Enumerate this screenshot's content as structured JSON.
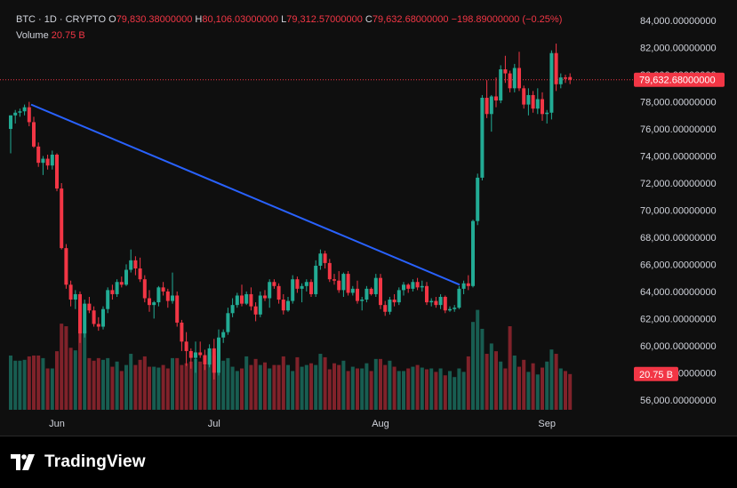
{
  "header": {
    "symbol": "BTC · 1D · CRYPTO",
    "open_label": "O",
    "open": "79,830.38000000",
    "high_label": "H",
    "high": "80,106.03000000",
    "low_label": "L",
    "low": "79,312.57000000",
    "close_label": "C",
    "close": "79,632.68000000",
    "change": "−198.89000000 (−0.25%)",
    "volume_label": "Volume",
    "volume": "20.75 B"
  },
  "price_badge": "79,632.68000000",
  "volume_badge": "20.75 B",
  "branding": {
    "name": "TradingView"
  },
  "colors": {
    "up": "#22ab94",
    "down": "#f23645",
    "trendline": "#2962ff",
    "background": "#0f0f0f"
  },
  "chart_data": {
    "type": "candlestick",
    "y_ticks": [
      "84,000.00000000",
      "82,000.00000000",
      "80,000.00000000",
      "78,000.00000000",
      "76,000.00000000",
      "74,000.00000000",
      "72,000.00000000",
      "70,000.00000000",
      "68,000.00000000",
      "66,000.00000000",
      "64,000.00000000",
      "62,000.00000000",
      "60,000.00000000",
      "58,000.00000000",
      "56,000.00000000"
    ],
    "x_ticks": [
      "Jun",
      "Jul",
      "Aug",
      "Sep"
    ],
    "ylim": [
      55200,
      84600
    ],
    "trendline": {
      "from": 77800,
      "to": 64500
    },
    "candles": [
      [
        76000,
        77000,
        74200,
        77000
      ],
      [
        77000,
        77400,
        76400,
        77200
      ],
      [
        77200,
        77500,
        76900,
        77300
      ],
      [
        77300,
        77800,
        77000,
        77600
      ],
      [
        77600,
        78000,
        76200,
        76500
      ],
      [
        76500,
        76900,
        74600,
        74700
      ],
      [
        74700,
        75000,
        73200,
        73500
      ],
      [
        73500,
        74000,
        72600,
        73800
      ],
      [
        73800,
        74100,
        73000,
        73300
      ],
      [
        73300,
        74400,
        73000,
        74100
      ],
      [
        74100,
        74200,
        71400,
        71600
      ],
      [
        71600,
        72000,
        67100,
        67200
      ],
      [
        67200,
        67500,
        64200,
        64500
      ],
      [
        64500,
        64800,
        62900,
        63400
      ],
      [
        63400,
        64100,
        62700,
        63800
      ],
      [
        63800,
        64000,
        60200,
        60900
      ],
      [
        60900,
        63400,
        60600,
        63100
      ],
      [
        63100,
        63600,
        62400,
        62600
      ],
      [
        62600,
        62900,
        61400,
        61600
      ],
      [
        61600,
        62100,
        61100,
        61400
      ],
      [
        61400,
        62900,
        61200,
        62700
      ],
      [
        62700,
        64300,
        62400,
        64100
      ],
      [
        64100,
        64500,
        63400,
        63800
      ],
      [
        63800,
        64900,
        63600,
        64700
      ],
      [
        64700,
        65100,
        64300,
        64500
      ],
      [
        64500,
        66000,
        64400,
        65600
      ],
      [
        65600,
        67100,
        65400,
        66300
      ],
      [
        66300,
        66600,
        65200,
        65700
      ],
      [
        65700,
        66500,
        64700,
        64900
      ],
      [
        64900,
        65200,
        63200,
        63500
      ],
      [
        63500,
        64100,
        62500,
        63000
      ],
      [
        63000,
        63300,
        62000,
        63200
      ],
      [
        63200,
        64400,
        62900,
        64300
      ],
      [
        64300,
        64700,
        63700,
        64000
      ],
      [
        64000,
        64200,
        62800,
        63300
      ],
      [
        63300,
        65400,
        63100,
        63700
      ],
      [
        63700,
        64000,
        61400,
        61700
      ],
      [
        61700,
        61900,
        59600,
        60300
      ],
      [
        60300,
        61000,
        58500,
        59600
      ],
      [
        59600,
        59800,
        58300,
        59100
      ],
      [
        59100,
        60300,
        58000,
        59500
      ],
      [
        59500,
        60300,
        59100,
        59300
      ],
      [
        59300,
        59700,
        58200,
        58600
      ],
      [
        58600,
        60100,
        58400,
        59800
      ],
      [
        59800,
        60500,
        57500,
        58000
      ],
      [
        58000,
        61200,
        57800,
        60600
      ],
      [
        60600,
        61200,
        60200,
        61000
      ],
      [
        61000,
        62800,
        60800,
        62400
      ],
      [
        62400,
        63500,
        62100,
        63000
      ],
      [
        63000,
        63900,
        62800,
        63700
      ],
      [
        63700,
        64500,
        62900,
        63100
      ],
      [
        63100,
        64000,
        63000,
        63800
      ],
      [
        63800,
        64300,
        62600,
        62900
      ],
      [
        62900,
        63200,
        61800,
        62300
      ],
      [
        62300,
        64000,
        62100,
        63700
      ],
      [
        63700,
        64100,
        63300,
        63500
      ],
      [
        63500,
        64900,
        62800,
        64700
      ],
      [
        64700,
        64900,
        64200,
        64400
      ],
      [
        64400,
        64600,
        63100,
        63400
      ],
      [
        63400,
        63800,
        62300,
        62600
      ],
      [
        62600,
        63600,
        62500,
        63300
      ],
      [
        63300,
        65200,
        63100,
        64900
      ],
      [
        64900,
        65100,
        63900,
        64200
      ],
      [
        64200,
        64600,
        63200,
        64400
      ],
      [
        64400,
        64900,
        64000,
        64700
      ],
      [
        64700,
        64900,
        63600,
        63800
      ],
      [
        63800,
        66300,
        63600,
        65900
      ],
      [
        65900,
        67100,
        65600,
        66800
      ],
      [
        66800,
        67000,
        65700,
        66100
      ],
      [
        66100,
        66400,
        64700,
        64900
      ],
      [
        64900,
        65300,
        64500,
        64800
      ],
      [
        64800,
        65500,
        63900,
        64100
      ],
      [
        64100,
        65400,
        63600,
        65300
      ],
      [
        65300,
        65500,
        63700,
        63900
      ],
      [
        63900,
        64400,
        63700,
        64200
      ],
      [
        64200,
        64800,
        63100,
        63300
      ],
      [
        63300,
        63600,
        62600,
        63400
      ],
      [
        63400,
        64400,
        63200,
        64200
      ],
      [
        64200,
        64300,
        63700,
        63800
      ],
      [
        63800,
        65300,
        63600,
        65000
      ],
      [
        65000,
        65300,
        62700,
        63000
      ],
      [
        63000,
        63300,
        62200,
        62500
      ],
      [
        62500,
        63600,
        62300,
        63400
      ],
      [
        63400,
        63800,
        62900,
        63200
      ],
      [
        63200,
        64300,
        63000,
        64100
      ],
      [
        64100,
        64700,
        63700,
        64500
      ],
      [
        64500,
        64600,
        63900,
        64200
      ],
      [
        64200,
        64900,
        64000,
        64700
      ],
      [
        64700,
        65000,
        64100,
        64300
      ],
      [
        64300,
        64800,
        64000,
        64400
      ],
      [
        64400,
        64700,
        63000,
        63200
      ],
      [
        63200,
        63500,
        62900,
        63300
      ],
      [
        63300,
        63600,
        62800,
        63000
      ],
      [
        63000,
        63800,
        62700,
        63600
      ],
      [
        63600,
        63700,
        62400,
        62600
      ],
      [
        62600,
        62900,
        62500,
        62700
      ],
      [
        62700,
        63000,
        62500,
        62800
      ],
      [
        62800,
        64400,
        62700,
        64200
      ],
      [
        64200,
        64800,
        63800,
        64600
      ],
      [
        64600,
        65200,
        64100,
        64400
      ],
      [
        64400,
        69300,
        64300,
        69200
      ],
      [
        69200,
        72700,
        68900,
        72400
      ],
      [
        72400,
        78500,
        72200,
        78300
      ],
      [
        78300,
        79600,
        76800,
        77100
      ],
      [
        77100,
        78500,
        75800,
        78400
      ],
      [
        78400,
        79800,
        77600,
        78100
      ],
      [
        78100,
        80700,
        77900,
        80400
      ],
      [
        80400,
        81400,
        79400,
        80100
      ],
      [
        80100,
        80300,
        78700,
        79000
      ],
      [
        79000,
        80800,
        78700,
        80500
      ],
      [
        80500,
        81700,
        78800,
        79000
      ],
      [
        79000,
        79200,
        77500,
        77800
      ],
      [
        77800,
        79000,
        77000,
        78500
      ],
      [
        78500,
        78800,
        77200,
        77500
      ],
      [
        77500,
        79000,
        77100,
        78200
      ],
      [
        78200,
        78700,
        76600,
        77100
      ],
      [
        77100,
        77400,
        76400,
        77200
      ],
      [
        77200,
        81800,
        76700,
        81600
      ],
      [
        81600,
        82300,
        78800,
        79300
      ],
      [
        79300,
        80100,
        79000,
        79800
      ],
      [
        79800,
        80000,
        79400,
        79700
      ],
      [
        79830.38,
        80106.03,
        79312.57,
        79632.68
      ]
    ],
    "volumes_b": [
      31.5,
      28.5,
      28.5,
      29.0,
      31.0,
      31.5,
      31.5,
      30.0,
      24.0,
      24.0,
      34.0,
      50.0,
      48.5,
      36.0,
      34.5,
      54.0,
      46.0,
      30.0,
      28.5,
      30.0,
      29.0,
      30.0,
      25.0,
      28.0,
      22.5,
      26.0,
      32.5,
      26.0,
      29.0,
      31.0,
      25.0,
      25.0,
      24.5,
      26.0,
      24.0,
      30.0,
      30.0,
      26.0,
      27.0,
      28.0,
      29.5,
      28.0,
      26.0,
      33.5,
      31.5,
      24.0,
      28.5,
      30.0,
      25.0,
      22.5,
      24.0,
      31.0,
      26.0,
      29.5,
      26.0,
      27.5,
      24.0,
      26.0,
      26.0,
      31.0,
      26.0,
      22.5,
      30.5,
      25.0,
      26.0,
      27.0,
      26.0,
      32.5,
      30.5,
      23.5,
      27.0,
      26.0,
      28.5,
      22.5,
      25.0,
      24.0,
      24.0,
      27.0,
      22.5,
      29.5,
      29.5,
      26.0,
      28.5,
      25.0,
      22.5,
      22.5,
      24.0,
      25.0,
      26.0,
      24.5,
      23.5,
      24.0,
      22.0,
      24.0,
      20.0,
      22.5,
      19.0,
      24.0,
      22.0,
      31.0,
      51.0,
      58.0,
      47.0,
      32.5,
      38.5,
      34.0,
      28.0,
      24.0,
      48.5,
      31.5,
      25.0,
      29.0,
      22.0,
      27.0,
      20.5,
      24.5,
      28.0,
      35.0,
      32.5,
      24.0,
      22.5,
      20.75
    ],
    "volume_axis_max_b": 64
  }
}
